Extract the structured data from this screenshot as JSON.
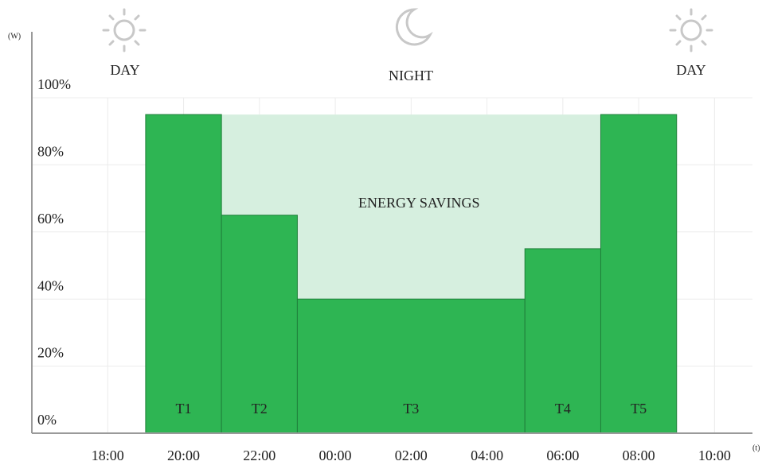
{
  "chart_data": {
    "type": "histogram",
    "y_unit": "(W)",
    "x_unit": "(t)",
    "phases": [
      "DAY",
      "NIGHT",
      "DAY"
    ],
    "bins": [
      19,
      21,
      23,
      29,
      31,
      33
    ],
    "values": [
      95,
      65,
      40,
      55,
      95
    ],
    "bar_labels": [
      "T1",
      "T2",
      "T3",
      "T4",
      "T5"
    ],
    "color": "#2eb553",
    "annotation": {
      "text": "ENERGY SAVINGS",
      "x": [
        21,
        31
      ],
      "y": 95,
      "color": "#d6efdf"
    },
    "xlim": [
      16,
      35
    ],
    "xticks": [
      {
        "value": 18,
        "label": "18:00"
      },
      {
        "value": 20,
        "label": "20:00"
      },
      {
        "value": 22,
        "label": "22:00"
      },
      {
        "value": 24,
        "label": "00:00"
      },
      {
        "value": 26,
        "label": "02:00"
      },
      {
        "value": 28,
        "label": "04:00"
      },
      {
        "value": 30,
        "label": "06:00"
      },
      {
        "value": 32,
        "label": "08:00"
      },
      {
        "value": 34,
        "label": "10:00"
      }
    ],
    "ylim": [
      0,
      100
    ],
    "yticks": [
      {
        "value": 0,
        "label": "0%"
      },
      {
        "value": 20,
        "label": "20%"
      },
      {
        "value": 40,
        "label": "40%"
      },
      {
        "value": 60,
        "label": "60%"
      },
      {
        "value": 80,
        "label": "80%"
      },
      {
        "value": 100,
        "label": "100%"
      }
    ],
    "grid": true
  }
}
